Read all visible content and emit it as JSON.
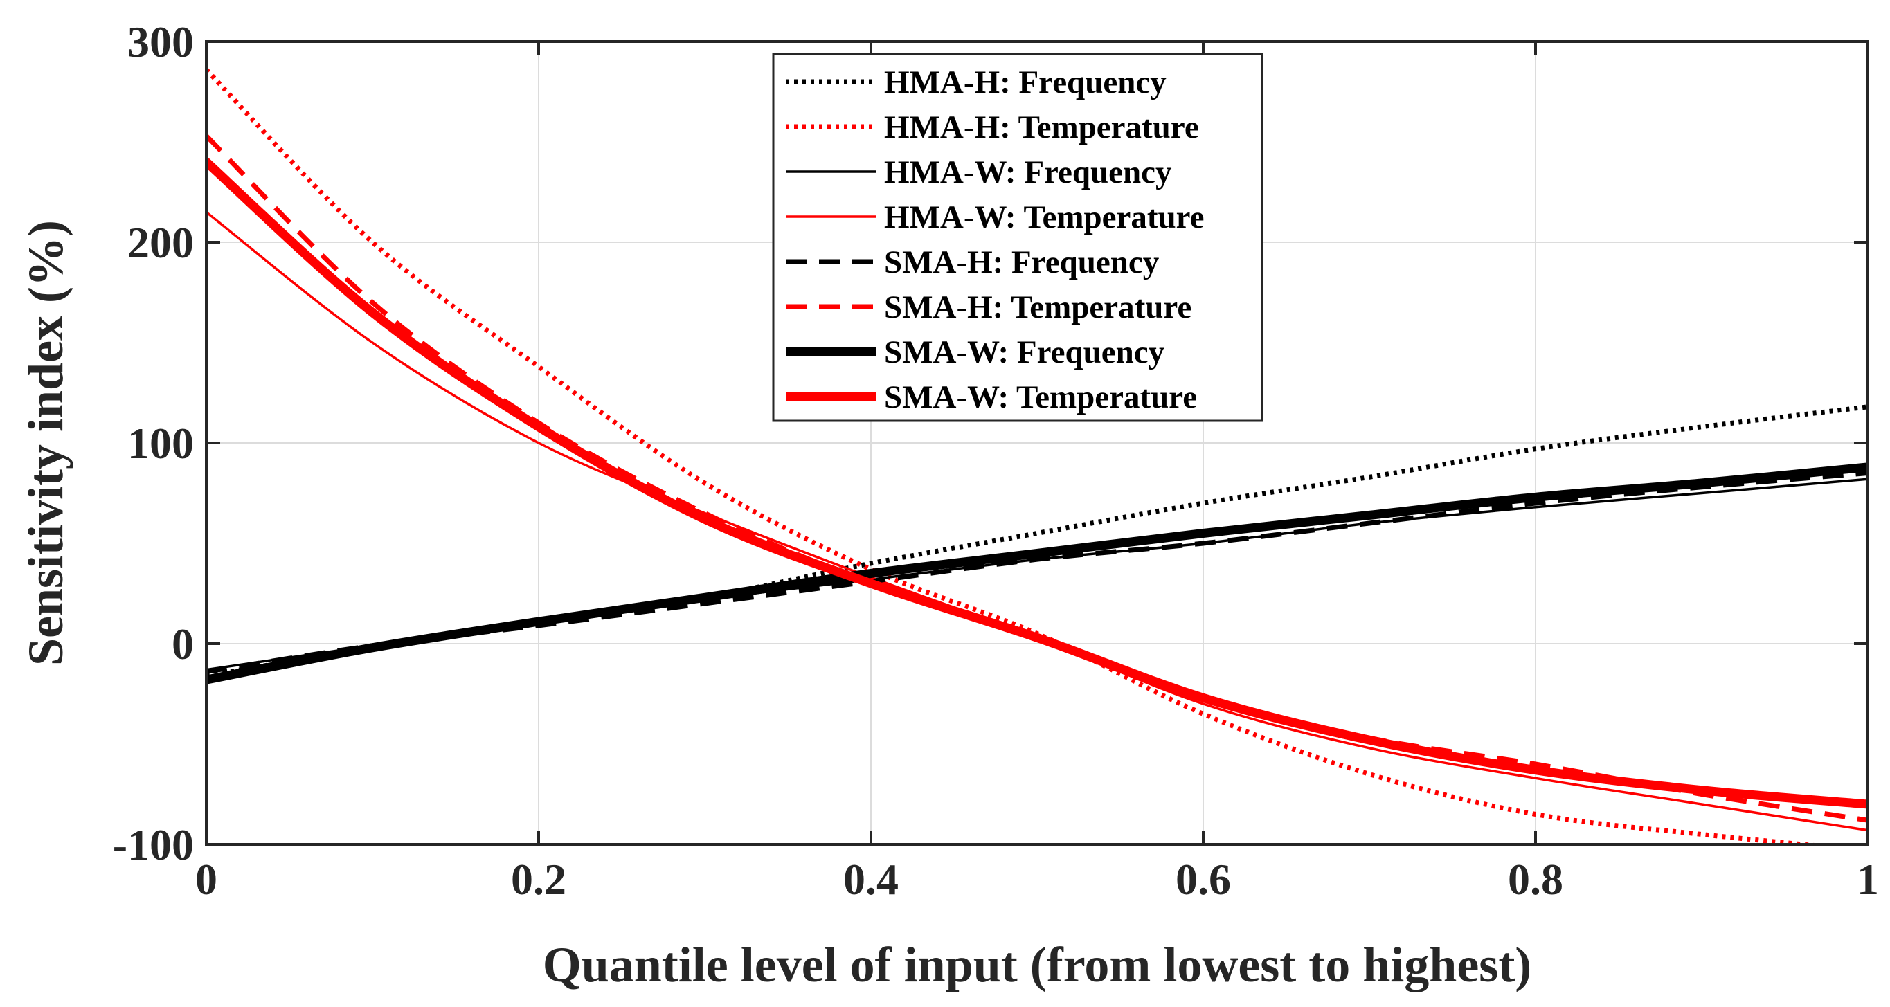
{
  "chart_data": {
    "type": "line",
    "xlabel": "Quantile level of input (from lowest to highest)",
    "ylabel": "Sensitivity index (%)",
    "xlim": [
      0,
      1
    ],
    "ylim": [
      -100,
      300
    ],
    "xticks": [
      0,
      0.2,
      0.4,
      0.6,
      0.8,
      1
    ],
    "xtick_labels": [
      "0",
      "0.2",
      "0.4",
      "0.6",
      "0.8",
      "1"
    ],
    "yticks": [
      -100,
      0,
      100,
      200,
      300
    ],
    "ytick_labels": [
      "-100",
      "0",
      "100",
      "200",
      "300"
    ],
    "grid": true,
    "legend_position": "top-center",
    "x": [
      0,
      0.1,
      0.2,
      0.3,
      0.4,
      0.5,
      0.6,
      0.7,
      0.8,
      0.9,
      1.0
    ],
    "series": [
      {
        "name": "HMA-H: Frequency",
        "color": "#000000",
        "style": "dotted",
        "weight": "medium",
        "values": [
          -16,
          -2,
          10,
          23,
          40,
          55,
          70,
          83,
          97,
          108,
          118
        ]
      },
      {
        "name": "HMA-H: Temperature",
        "color": "#ff0000",
        "style": "dotted",
        "weight": "medium",
        "values": [
          286,
          200,
          138,
          80,
          37,
          5,
          -35,
          -65,
          -85,
          -95,
          -103
        ]
      },
      {
        "name": "HMA-W: Frequency",
        "color": "#000000",
        "style": "solid",
        "weight": "thin",
        "values": [
          -13,
          -1,
          10,
          22,
          32,
          42,
          50,
          60,
          68,
          75,
          82
        ]
      },
      {
        "name": "HMA-W: Temperature",
        "color": "#ff0000",
        "style": "solid",
        "weight": "thin",
        "values": [
          215,
          150,
          100,
          65,
          33,
          3,
          -30,
          -52,
          -67,
          -80,
          -93
        ]
      },
      {
        "name": "SMA-H: Frequency",
        "color": "#000000",
        "style": "dashed",
        "weight": "medium",
        "values": [
          -14,
          -1,
          9,
          20,
          31,
          42,
          50,
          60,
          70,
          78,
          85
        ]
      },
      {
        "name": "SMA-H: Temperature",
        "color": "#ff0000",
        "style": "dashed",
        "weight": "medium",
        "values": [
          253,
          170,
          110,
          65,
          30,
          2,
          -27,
          -47,
          -60,
          -75,
          -88
        ]
      },
      {
        "name": "SMA-W: Frequency",
        "color": "#000000",
        "style": "solid",
        "weight": "thick",
        "values": [
          -18,
          -2,
          11,
          23,
          35,
          45,
          55,
          64,
          73,
          80,
          88
        ]
      },
      {
        "name": "SMA-W: Temperature",
        "color": "#ff0000",
        "style": "solid",
        "weight": "thick",
        "values": [
          240,
          165,
          108,
          62,
          30,
          3,
          -27,
          -48,
          -63,
          -73,
          -80
        ]
      }
    ]
  }
}
